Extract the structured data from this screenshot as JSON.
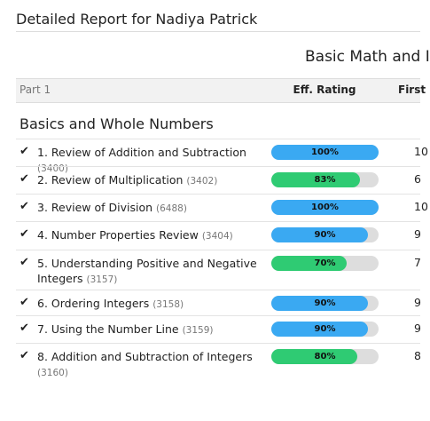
{
  "header": {
    "title": "Detailed Report for Nadiya Patrick"
  },
  "course": "Basic Math and I",
  "table": {
    "columns": {
      "part": "Part 1",
      "rating": "Eff. Rating",
      "first": "First"
    },
    "section": "Basics and Whole Numbers",
    "rows": [
      {
        "name": "1. Review of Addition and Subtraction",
        "code": "(3400)",
        "rating": 100,
        "rating_label": "100%",
        "color": "#3aa9f2",
        "first": "10"
      },
      {
        "name": "2. Review of Multiplication",
        "code": "(3402)",
        "rating": 83,
        "rating_label": "83%",
        "color": "#2fcb73",
        "first": "6"
      },
      {
        "name": "3. Review of Division",
        "code": "(6488)",
        "rating": 100,
        "rating_label": "100%",
        "color": "#3aa9f2",
        "first": "10"
      },
      {
        "name": "4. Number Properties Review",
        "code": "(3404)",
        "rating": 90,
        "rating_label": "90%",
        "color": "#3aa9f2",
        "first": "9"
      },
      {
        "name": "5. Understanding Positive and Negative Integers",
        "code": "(3157)",
        "rating": 70,
        "rating_label": "70%",
        "color": "#2fcb73",
        "first": "7"
      },
      {
        "name": "6. Ordering Integers",
        "code": "(3158)",
        "rating": 90,
        "rating_label": "90%",
        "color": "#3aa9f2",
        "first": "9"
      },
      {
        "name": "7. Using the Number Line",
        "code": "(3159)",
        "rating": 90,
        "rating_label": "90%",
        "color": "#3aa9f2",
        "first": "9"
      },
      {
        "name": "8. Addition and Subtraction of Integers",
        "code": "(3160)",
        "rating": 80,
        "rating_label": "80%",
        "color": "#2fcb73",
        "first": "8"
      }
    ]
  }
}
